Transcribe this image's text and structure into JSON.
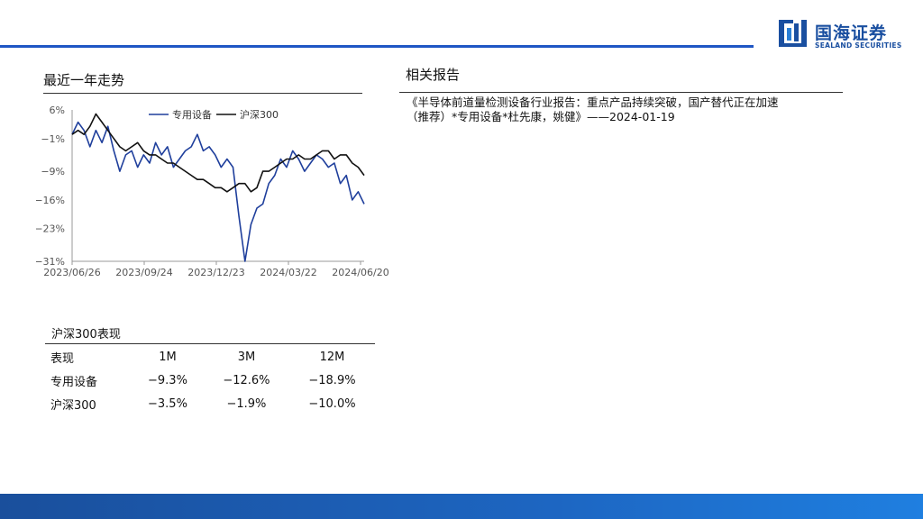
{
  "brand": {
    "name_cn": "国海证券",
    "name_en": "SEALAND SECURITIES",
    "color": "#1a4fa0"
  },
  "left_section": {
    "title": "最近一年走势"
  },
  "right_section": {
    "title": "相关报告",
    "report_lines": [
      "《半导体前道量检测设备行业报告：重点产品持续突破，国产替代正在加速",
      "（推荐）*专用设备*杜先康，姚健》——2024-01-19"
    ]
  },
  "table": {
    "title": "沪深300表现",
    "headers": [
      "表现",
      "1M",
      "3M",
      "12M"
    ],
    "rows": [
      [
        "专用设备",
        "−9.3%",
        "−12.6%",
        "−18.9%"
      ],
      [
        "沪深300",
        "−3.5%",
        "−1.9%",
        "−10.0%"
      ]
    ]
  },
  "chart_data": {
    "type": "line",
    "ylim": [
      -31,
      6
    ],
    "y_ticks": [
      6,
      -1,
      -9,
      -16,
      -23,
      -31
    ],
    "y_tick_labels": [
      "6%",
      "−1%",
      "−9%",
      "−16%",
      "−23%",
      "−31%"
    ],
    "x_tick_labels": [
      "2023/06/26",
      "2023/09/24",
      "2023/12/23",
      "2024/03/22",
      "2024/06/20"
    ],
    "legend_position": "top-center",
    "series": [
      {
        "name": "专用设备",
        "color": "#1f3f9c",
        "values": [
          0,
          3,
          1,
          -3,
          1,
          -2,
          2,
          -4,
          -9,
          -5,
          -4,
          -8,
          -5,
          -7,
          -2,
          -5,
          -3,
          -8,
          -6,
          -4,
          -3,
          0,
          -4,
          -3,
          -5,
          -8,
          -6,
          -8,
          -20,
          -31,
          -22,
          -18,
          -17,
          -12,
          -10,
          -6,
          -8,
          -4,
          -6,
          -9,
          -7,
          -5,
          -6,
          -8,
          -7,
          -12,
          -10,
          -16,
          -14,
          -17
        ]
      },
      {
        "name": "沪深300",
        "color": "#111111",
        "values": [
          0,
          1,
          0,
          2,
          5,
          3,
          1,
          -1,
          -3,
          -4,
          -3,
          -2,
          -4,
          -5,
          -5,
          -6,
          -7,
          -7,
          -8,
          -9,
          -10,
          -11,
          -11,
          -12,
          -13,
          -13,
          -14,
          -13,
          -12,
          -12,
          -14,
          -13,
          -9,
          -9,
          -8,
          -7,
          -6,
          -6,
          -5,
          -6,
          -6,
          -5,
          -4,
          -4,
          -6,
          -5,
          -5,
          -7,
          -8,
          -10
        ]
      }
    ]
  }
}
